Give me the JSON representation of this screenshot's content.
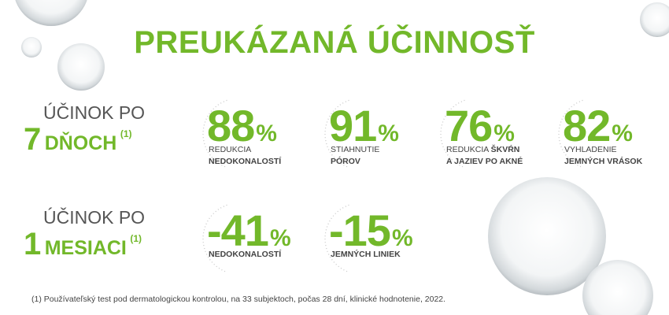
{
  "title": "PREUKÁZANÁ ÚČINNOSŤ",
  "rows": [
    {
      "label_top": "ÚČINOK PO",
      "label_number": "7",
      "label_word": "DŇOCH",
      "label_note": "(1)",
      "items": [
        {
          "value": "88",
          "unit": "%",
          "lines": [
            [
              {
                "text": "REDUKCIA",
                "bold": false
              }
            ],
            [
              {
                "text": "NEDOKONALOSTÍ",
                "bold": true
              }
            ]
          ]
        },
        {
          "value": "91",
          "unit": "%",
          "lines": [
            [
              {
                "text": "STIAHNUTIE",
                "bold": false
              }
            ],
            [
              {
                "text": "PÓROV",
                "bold": true
              }
            ]
          ]
        },
        {
          "value": "76",
          "unit": "%",
          "lines": [
            [
              {
                "text": "REDUKCIA",
                "bold": false
              },
              {
                "text": "ŠKVŔN",
                "bold": true
              }
            ],
            [
              {
                "text": "A JAZIEV PO AKNÉ",
                "bold": true
              }
            ]
          ]
        },
        {
          "value": "82",
          "unit": "%",
          "lines": [
            [
              {
                "text": "VYHLADENIE",
                "bold": false
              }
            ],
            [
              {
                "text": "JEMNÝCH VRÁSOK",
                "bold": true
              }
            ]
          ]
        }
      ]
    },
    {
      "label_top": "ÚČINOK PO",
      "label_number": "1",
      "label_word": "MESIACI",
      "label_note": "(1)",
      "items": [
        {
          "value": "-41",
          "unit": "%",
          "lines": [
            [
              {
                "text": "NEDOKONALOSTÍ",
                "bold": true
              }
            ]
          ]
        },
        {
          "value": "-15",
          "unit": "%",
          "lines": [
            [
              {
                "text": "JEMNÝCH LINIEK",
                "bold": true
              }
            ]
          ]
        }
      ]
    }
  ],
  "footnote": "(1) Používateľský test pod dermatologickou kontrolou, na 33 subjektoch, počas 28 dní, klinické hodnotenie, 2022."
}
